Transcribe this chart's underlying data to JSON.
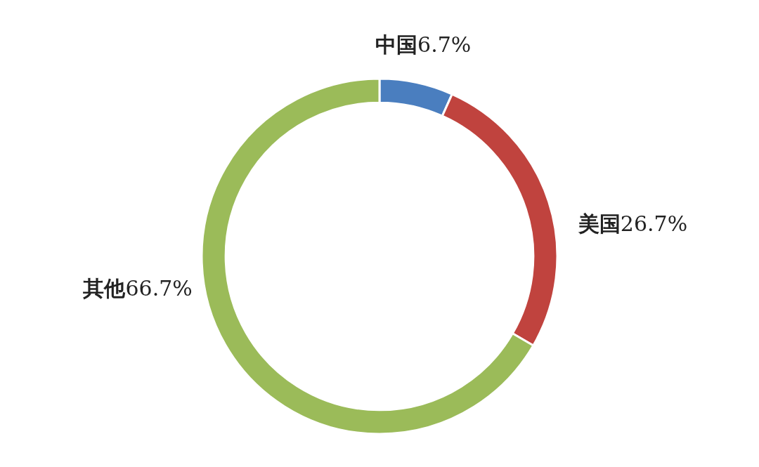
{
  "chart_data": {
    "type": "donut",
    "categories": [
      "中国",
      "美国",
      "其他"
    ],
    "values": [
      6.7,
      26.7,
      66.7
    ],
    "value_labels": [
      "6.7%",
      "26.7%",
      "66.7%"
    ],
    "colors": [
      "#4a7ebf",
      "#c0433e",
      "#9bbb59"
    ]
  }
}
